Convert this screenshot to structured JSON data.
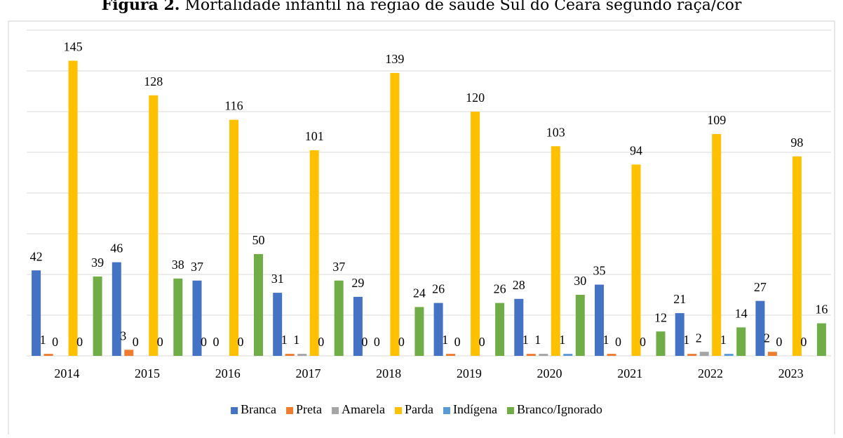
{
  "chart_data": {
    "type": "bar",
    "title_label": "Figura 2.",
    "title": "Mortalidade infantil na região de saúde Sul do Ceará segundo raça/cor",
    "categories": [
      "2014",
      "2015",
      "2016",
      "2017",
      "2018",
      "2019",
      "2020",
      "2021",
      "2022",
      "2023"
    ],
    "series": [
      {
        "name": "Branca",
        "color": "#4472c4",
        "values": [
          42,
          46,
          37,
          31,
          29,
          26,
          28,
          35,
          21,
          27
        ]
      },
      {
        "name": "Preta",
        "color": "#ed7d31",
        "values": [
          1,
          3,
          0,
          1,
          0,
          1,
          1,
          1,
          1,
          2
        ]
      },
      {
        "name": "Amarela",
        "color": "#a5a5a5",
        "values": [
          0,
          0,
          0,
          1,
          0,
          0,
          1,
          0,
          2,
          0
        ]
      },
      {
        "name": "Parda",
        "color": "#ffc000",
        "values": [
          145,
          128,
          116,
          101,
          139,
          120,
          103,
          94,
          109,
          98
        ]
      },
      {
        "name": "Indígena",
        "color": "#5b9bd5",
        "values": [
          0,
          0,
          0,
          0,
          0,
          0,
          1,
          0,
          1,
          0
        ]
      },
      {
        "name": "Branco/Ignorado",
        "color": "#70ad47",
        "values": [
          39,
          38,
          50,
          37,
          24,
          26,
          30,
          12,
          14,
          16
        ]
      }
    ],
    "ylim": [
      0,
      160
    ],
    "yticks": [
      0,
      20,
      40,
      60,
      80,
      100,
      120,
      140,
      160
    ],
    "grid": true
  }
}
